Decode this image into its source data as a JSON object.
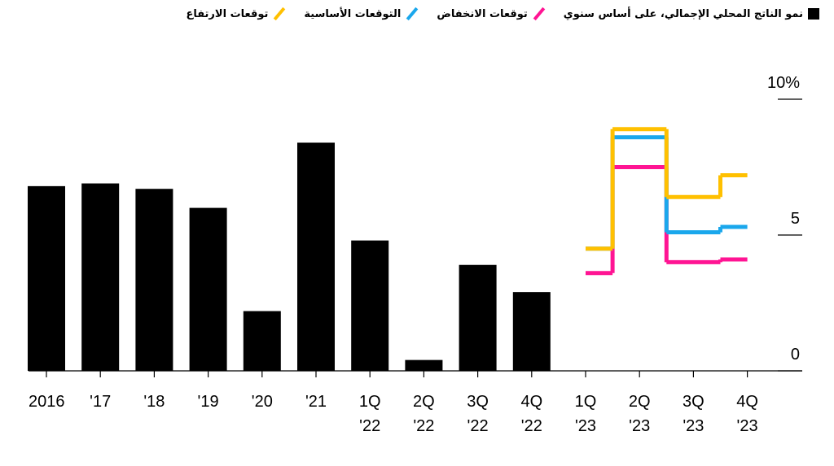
{
  "chart_data": {
    "type": "bar-step",
    "categories": [
      "2016",
      "'17",
      "'18",
      "'19",
      "'20",
      "'21",
      "1Q '22",
      "2Q '22",
      "3Q '22",
      "4Q '22",
      "1Q '23",
      "2Q '23",
      "3Q '23",
      "4Q '23"
    ],
    "bars": {
      "name": "نمو الناتج المحلي الإجمالي، على أساس سنوي",
      "color": "#000000",
      "values": [
        6.8,
        6.9,
        6.7,
        6.0,
        2.2,
        8.4,
        4.8,
        0.4,
        3.9,
        2.9,
        null,
        null,
        null,
        null
      ]
    },
    "series": [
      {
        "name": "توقعات الانخفاض",
        "color": "#ff1493",
        "values": [
          null,
          null,
          null,
          null,
          null,
          null,
          null,
          null,
          null,
          null,
          3.6,
          7.5,
          4.0,
          4.1
        ]
      },
      {
        "name": "التوقعات الأساسية",
        "color": "#1aa7ec",
        "values": [
          null,
          null,
          null,
          null,
          null,
          null,
          null,
          null,
          null,
          null,
          4.5,
          8.6,
          5.1,
          5.3
        ]
      },
      {
        "name": "توقعات الارتفاع",
        "color": "#ffc000",
        "values": [
          null,
          null,
          null,
          null,
          null,
          null,
          null,
          null,
          null,
          null,
          4.5,
          8.9,
          6.4,
          7.2
        ]
      }
    ],
    "ylim": [
      0,
      10
    ],
    "yticks": [
      0,
      5,
      {
        "value": 10,
        "label": "10%"
      }
    ]
  }
}
